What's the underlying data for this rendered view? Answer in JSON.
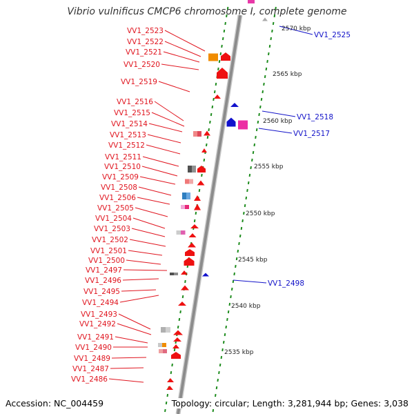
{
  "title": "Vibrio vulnificus CMCP6 chromosome I, complete genome",
  "footer": {
    "accession": "Accession: NC_004459",
    "topology": "Topology: circular; Length: 3,281,944 bp; Genes: 3,038"
  },
  "colors": {
    "forward_gene_label": "#e0141e",
    "reverse_gene_label": "#1010c8",
    "backbone": "#8c8c8c",
    "tick": "#1e8c1e",
    "forward_arrow": "#ee1111",
    "reverse_arrow": "#1111cc"
  },
  "scale_labels": [
    "2570 kbp",
    "2565 kbp",
    "2560 kbp",
    "2555 kbp",
    "2550 kbp",
    "2545 kbp",
    "2540 kbp",
    "2535 kbp"
  ],
  "left_labels": [
    "VV1_2523",
    "VV1_2522",
    "VV1_2521",
    "VV1_2520",
    "VV1_2519",
    "VV1_2516",
    "VV1_2515",
    "VV1_2514",
    "VV1_2513",
    "VV1_2512",
    "VV1_2511",
    "VV1_2510",
    "VV1_2509",
    "VV1_2508",
    "VV1_2506",
    "VV1_2505",
    "VV1_2504",
    "VV1_2503",
    "VV1_2502",
    "VV1_2501",
    "VV1_2500",
    "VV1_2497",
    "VV1_2496",
    "VV1_2495",
    "VV1_2494",
    "VV1_2493",
    "VV1_2492",
    "VV1_2491",
    "VV1_2490",
    "VV1_2489",
    "VV1_2487",
    "VV1_2486"
  ],
  "right_labels": [
    "VV1_2525",
    "VV1_2518",
    "VV1_2517",
    "VV1_2498"
  ]
}
